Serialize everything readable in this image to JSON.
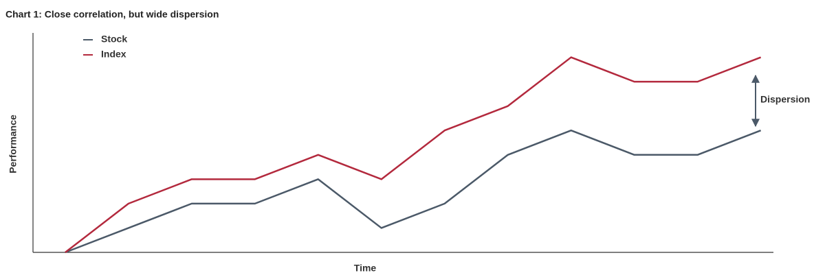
{
  "chart_data": {
    "type": "line",
    "title": "Chart 1: Close correlation, but wide dispersion",
    "x_label": "Time",
    "y_label": "Performance",
    "annotation": "Dispersion",
    "x": [
      0,
      1,
      2,
      3,
      4,
      5,
      6,
      7,
      8,
      9,
      10,
      11
    ],
    "xlim": [
      -0.51,
      11.2
    ],
    "ylim": [
      0,
      9
    ],
    "legend": "upper left",
    "grid": false,
    "series": [
      {
        "name": "Stock",
        "color": "#4b5968",
        "values": [
          0,
          1,
          2,
          2,
          3,
          1,
          2,
          4,
          5,
          4,
          4,
          5
        ]
      },
      {
        "name": "Index",
        "color": "#b3293d",
        "values": [
          0,
          2,
          3,
          3,
          4,
          3,
          5,
          6,
          8,
          7,
          7,
          8
        ]
      }
    ]
  }
}
